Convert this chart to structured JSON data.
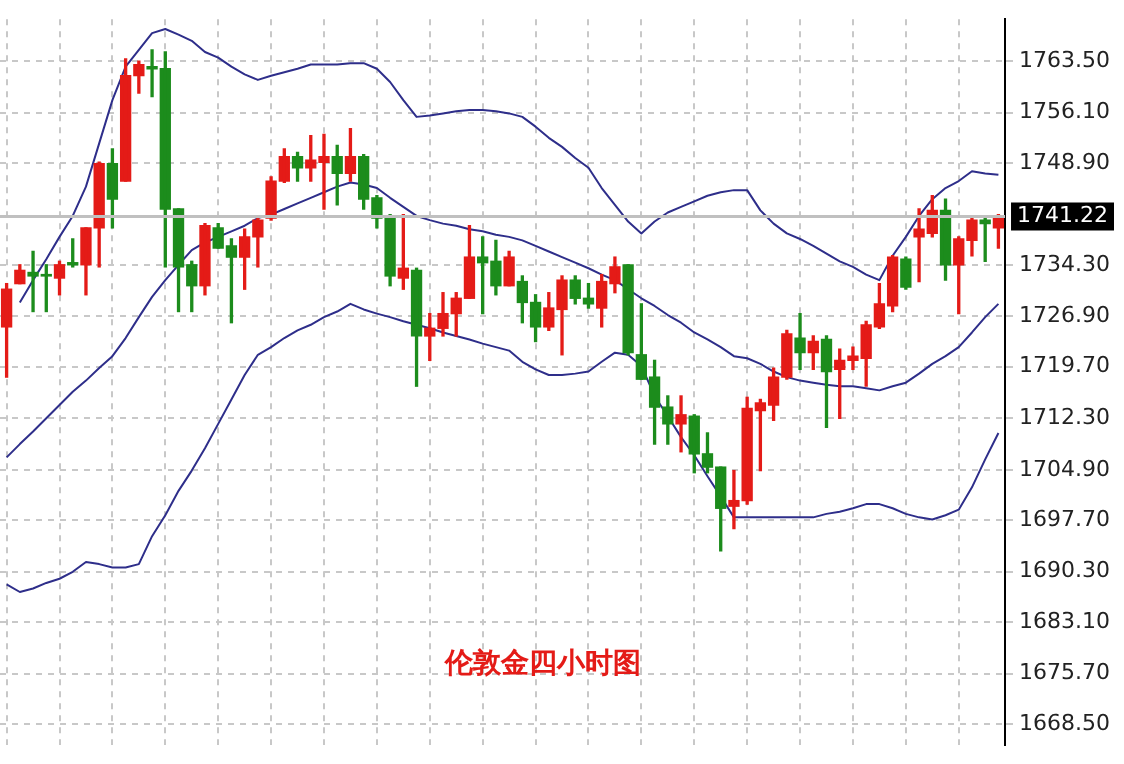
{
  "chart_data": {
    "type": "candlestick",
    "title": "伦敦金四小时图",
    "categories": [
      null,
      null,
      null,
      null,
      null,
      null,
      null,
      null,
      null,
      null,
      null,
      null,
      null,
      null,
      null,
      null,
      null,
      null,
      null,
      null,
      null,
      null,
      null,
      null,
      null,
      null,
      null,
      null,
      null,
      null,
      null,
      null,
      null,
      null,
      null,
      null,
      null,
      null,
      null,
      null,
      null,
      null,
      null,
      null,
      null,
      null,
      null,
      null,
      null,
      null,
      null,
      null,
      null,
      null,
      null,
      null,
      null,
      null,
      null,
      null,
      null,
      null,
      null,
      null,
      null,
      null,
      null,
      null,
      null,
      null,
      null,
      null,
      null,
      null,
      null,
      null
    ],
    "ohlc": [
      [
        1725.4,
        1731.6,
        1718.2,
        1730.8
      ],
      [
        1731.6,
        1734.3,
        1731.6,
        1733.5
      ],
      [
        1733.2,
        1736.2,
        1727.6,
        1732.7
      ],
      [
        1732.9,
        1734.3,
        1727.6,
        1732.7
      ],
      [
        1732.4,
        1734.8,
        1730.0,
        1734.3
      ],
      [
        1734.6,
        1738.0,
        1734.0,
        1734.3
      ],
      [
        1734.3,
        1739.6,
        1730.0,
        1739.6
      ],
      [
        1739.6,
        1749.0,
        1734.0,
        1748.8
      ],
      [
        1748.8,
        1750.9,
        1739.6,
        1743.7
      ],
      [
        1746.3,
        1763.8,
        1746.3,
        1761.4
      ],
      [
        1761.4,
        1763.5,
        1758.9,
        1763.0
      ],
      [
        1762.7,
        1765.1,
        1758.4,
        1762.4
      ],
      [
        1762.4,
        1764.8,
        1734.0,
        1742.3
      ],
      [
        1742.3,
        1742.3,
        1727.6,
        1734.0
      ],
      [
        1734.3,
        1734.8,
        1727.6,
        1731.3
      ],
      [
        1731.3,
        1740.2,
        1730.0,
        1739.9
      ],
      [
        1739.6,
        1740.2,
        1736.7,
        1736.7
      ],
      [
        1737.0,
        1738.0,
        1726.0,
        1735.4
      ],
      [
        1735.4,
        1739.4,
        1730.8,
        1738.3
      ],
      [
        1738.3,
        1741.0,
        1734.0,
        1740.7
      ],
      [
        1741.0,
        1746.9,
        1740.7,
        1746.3
      ],
      [
        1746.3,
        1750.9,
        1746.1,
        1749.8
      ],
      [
        1749.8,
        1750.4,
        1746.3,
        1748.2
      ],
      [
        1748.2,
        1752.8,
        1746.3,
        1749.3
      ],
      [
        1749.0,
        1753.0,
        1742.3,
        1749.8
      ],
      [
        1749.8,
        1751.4,
        1742.9,
        1747.4
      ],
      [
        1747.4,
        1753.8,
        1746.3,
        1749.8
      ],
      [
        1749.8,
        1750.1,
        1742.3,
        1743.7
      ],
      [
        1743.9,
        1744.2,
        1739.6,
        1741.0
      ],
      [
        1741.3,
        1741.5,
        1731.3,
        1732.7
      ],
      [
        1732.4,
        1741.5,
        1730.8,
        1733.8
      ],
      [
        1733.5,
        1733.8,
        1716.9,
        1724.1
      ],
      [
        1724.1,
        1727.3,
        1720.6,
        1725.2
      ],
      [
        1725.2,
        1730.3,
        1724.1,
        1727.3
      ],
      [
        1727.3,
        1730.3,
        1724.1,
        1729.5
      ],
      [
        1729.5,
        1739.9,
        1729.5,
        1735.4
      ],
      [
        1735.4,
        1738.3,
        1727.3,
        1734.6
      ],
      [
        1734.8,
        1737.8,
        1730.0,
        1731.3
      ],
      [
        1731.3,
        1736.2,
        1731.3,
        1735.4
      ],
      [
        1731.9,
        1732.7,
        1726.0,
        1728.9
      ],
      [
        1728.9,
        1730.0,
        1723.3,
        1725.4
      ],
      [
        1725.4,
        1730.3,
        1724.9,
        1728.1
      ],
      [
        1727.9,
        1732.7,
        1721.4,
        1732.1
      ],
      [
        1732.1,
        1732.7,
        1728.7,
        1729.5
      ],
      [
        1729.5,
        1731.6,
        1728.1,
        1728.7
      ],
      [
        1728.1,
        1732.9,
        1725.4,
        1731.9
      ],
      [
        1731.6,
        1735.4,
        1730.3,
        1734.0
      ],
      [
        1734.3,
        1734.3,
        1721.4,
        1721.7
      ],
      [
        1721.4,
        1728.7,
        1717.9,
        1717.9
      ],
      [
        1718.2,
        1720.6,
        1708.6,
        1713.9
      ],
      [
        1713.9,
        1715.5,
        1708.6,
        1711.5
      ],
      [
        1711.5,
        1715.5,
        1707.5,
        1712.8
      ],
      [
        1712.6,
        1712.8,
        1704.5,
        1707.2
      ],
      [
        1707.2,
        1710.2,
        1704.5,
        1705.3
      ],
      [
        1705.3,
        1705.3,
        1693.3,
        1699.4
      ],
      [
        1699.7,
        1704.8,
        1696.5,
        1700.5
      ],
      [
        1700.5,
        1715.3,
        1700.0,
        1713.7
      ],
      [
        1713.4,
        1715.0,
        1704.8,
        1714.5
      ],
      [
        1714.2,
        1719.5,
        1712.0,
        1718.2
      ],
      [
        1718.2,
        1724.9,
        1717.9,
        1724.4
      ],
      [
        1723.8,
        1727.3,
        1719.3,
        1721.7
      ],
      [
        1721.7,
        1724.1,
        1719.3,
        1723.3
      ],
      [
        1723.6,
        1724.1,
        1711.0,
        1719.0
      ],
      [
        1719.3,
        1722.2,
        1712.3,
        1720.6
      ],
      [
        1720.6,
        1722.5,
        1719.3,
        1721.2
      ],
      [
        1720.9,
        1726.2,
        1716.9,
        1725.7
      ],
      [
        1725.4,
        1731.6,
        1725.2,
        1728.7
      ],
      [
        1728.4,
        1735.6,
        1727.6,
        1735.4
      ],
      [
        1735.1,
        1735.4,
        1730.8,
        1731.1
      ],
      [
        1738.3,
        1742.3,
        1731.9,
        1739.4
      ],
      [
        1738.8,
        1744.2,
        1738.3,
        1742.1
      ],
      [
        1742.1,
        1743.7,
        1732.1,
        1734.3
      ],
      [
        1734.3,
        1738.3,
        1727.3,
        1738.0
      ],
      [
        1737.8,
        1741.0,
        1735.6,
        1740.7
      ],
      [
        1740.7,
        1741.0,
        1734.8,
        1740.2
      ],
      [
        1739.6,
        1741.5,
        1736.7,
        1741.22
      ]
    ],
    "colors": [
      "#e41b17",
      "#e41b17",
      "#1c8c1c",
      "#1c8c1c",
      "#e41b17",
      "#1c8c1c",
      "#e41b17",
      "#e41b17",
      "#1c8c1c",
      "#e41b17",
      "#e41b17",
      "#1c8c1c",
      "#1c8c1c",
      "#1c8c1c",
      "#1c8c1c",
      "#e41b17",
      "#1c8c1c",
      "#1c8c1c",
      "#e41b17",
      "#e41b17",
      "#e41b17",
      "#e41b17",
      "#1c8c1c",
      "#e41b17",
      "#e41b17",
      "#1c8c1c",
      "#e41b17",
      "#1c8c1c",
      "#1c8c1c",
      "#1c8c1c",
      "#e41b17",
      "#1c8c1c",
      "#e41b17",
      "#e41b17",
      "#e41b17",
      "#e41b17",
      "#1c8c1c",
      "#1c8c1c",
      "#e41b17",
      "#1c8c1c",
      "#1c8c1c",
      "#e41b17",
      "#e41b17",
      "#1c8c1c",
      "#1c8c1c",
      "#e41b17",
      "#e41b17",
      "#1c8c1c",
      "#1c8c1c",
      "#1c8c1c",
      "#1c8c1c",
      "#e41b17",
      "#1c8c1c",
      "#1c8c1c",
      "#1c8c1c",
      "#e41b17",
      "#e41b17",
      "#e41b17",
      "#e41b17",
      "#e41b17",
      "#1c8c1c",
      "#e41b17",
      "#1c8c1c",
      "#e41b17",
      "#e41b17",
      "#e41b17",
      "#e41b17",
      "#e41b17",
      "#1c8c1c",
      "#e41b17",
      "#e41b17",
      "#1c8c1c",
      "#e41b17",
      "#e41b17",
      "#1c8c1c",
      "#e41b17"
    ],
    "series": [
      {
        "type": "line",
        "color": "#2e2e8a",
        "values": [
          null,
          1728.9,
          1732.1,
          1735.1,
          1738.3,
          1741.3,
          1745.5,
          1751.7,
          1757.9,
          1762.7,
          1765.1,
          1767.5,
          1768.1,
          1767.3,
          1766.4,
          1764.8,
          1764.0,
          1762.7,
          1761.6,
          1760.8,
          1761.4,
          1761.9,
          1762.4,
          1763.0,
          1763.0,
          1763.0,
          1763.2,
          1763.2,
          1762.4,
          1760.5,
          1757.9,
          1755.5,
          1755.7,
          1756.0,
          1756.3,
          1756.5,
          1756.5,
          1756.3,
          1756.0,
          1755.5,
          1754.1,
          1752.5,
          1751.2,
          1749.6,
          1748.2,
          1745.3,
          1742.9,
          1740.5,
          1738.8,
          1740.5,
          1741.8,
          1742.6,
          1743.4,
          1744.2,
          1744.7,
          1745.0,
          1745.0,
          1742.1,
          1740.2,
          1738.8,
          1738.0,
          1737.0,
          1735.9,
          1734.8,
          1734.0,
          1732.9,
          1732.1,
          1735.6,
          1738.3,
          1741.3,
          1743.7,
          1745.3,
          1746.3,
          1747.7,
          1747.4,
          1747.2
        ]
      },
      {
        "type": "line",
        "color": "#2e2e8a",
        "values": [
          1706.7,
          1708.6,
          1710.4,
          1712.3,
          1714.2,
          1716.1,
          1717.7,
          1719.5,
          1721.2,
          1723.8,
          1726.8,
          1729.7,
          1732.1,
          1734.3,
          1736.4,
          1737.5,
          1738.3,
          1739.1,
          1739.9,
          1741.0,
          1741.5,
          1742.3,
          1743.1,
          1743.9,
          1744.7,
          1745.5,
          1746.1,
          1745.8,
          1745.3,
          1743.9,
          1742.6,
          1741.3,
          1740.7,
          1740.2,
          1739.9,
          1739.4,
          1739.1,
          1738.6,
          1738.3,
          1737.8,
          1737.0,
          1736.2,
          1735.4,
          1734.6,
          1733.8,
          1732.9,
          1732.1,
          1730.8,
          1729.5,
          1728.4,
          1727.1,
          1726.0,
          1724.6,
          1723.6,
          1722.5,
          1721.2,
          1720.9,
          1720.1,
          1719.0,
          1718.2,
          1717.7,
          1717.4,
          1717.1,
          1716.9,
          1716.9,
          1716.6,
          1716.3,
          1716.9,
          1717.4,
          1718.7,
          1720.1,
          1721.2,
          1722.5,
          1724.6,
          1726.8,
          1728.7
        ]
      },
      {
        "type": "line",
        "color": "#2e2e8a",
        "values": [
          1688.5,
          1687.4,
          1687.9,
          1688.7,
          1689.3,
          1690.3,
          1691.7,
          1691.4,
          1690.9,
          1690.9,
          1691.4,
          1695.4,
          1698.4,
          1701.9,
          1704.8,
          1708.0,
          1711.5,
          1715.0,
          1718.5,
          1721.4,
          1722.5,
          1723.8,
          1724.9,
          1725.7,
          1726.8,
          1727.6,
          1728.7,
          1727.9,
          1727.3,
          1726.8,
          1726.2,
          1725.7,
          1725.2,
          1724.6,
          1724.1,
          1723.6,
          1723.0,
          1722.5,
          1722.0,
          1720.4,
          1719.3,
          1718.5,
          1718.5,
          1718.7,
          1719.0,
          1720.4,
          1721.7,
          1721.4,
          1719.8,
          1715.5,
          1712.6,
          1709.6,
          1707.0,
          1704.0,
          1701.1,
          1698.1,
          1698.1,
          1698.1,
          1698.1,
          1698.1,
          1698.1,
          1698.1,
          1698.6,
          1698.9,
          1699.4,
          1700.0,
          1700.0,
          1699.4,
          1698.6,
          1698.1,
          1697.8,
          1698.4,
          1699.2,
          1702.4,
          1706.4,
          1710.2
        ]
      }
    ],
    "ylim": [
      1665.5,
      1769.5
    ],
    "yticks": [
      {
        "value": 1763.5,
        "label": "1763.50"
      },
      {
        "value": 1756.1,
        "label": "1756.10"
      },
      {
        "value": 1748.9,
        "label": "1748.90"
      },
      {
        "value": 1734.3,
        "label": "1734.30"
      },
      {
        "value": 1726.9,
        "label": "1726.90"
      },
      {
        "value": 1719.7,
        "label": "1719.70"
      },
      {
        "value": 1712.3,
        "label": "1712.30"
      },
      {
        "value": 1704.9,
        "label": "1704.90"
      },
      {
        "value": 1697.7,
        "label": "1697.70"
      },
      {
        "value": 1690.3,
        "label": "1690.30"
      },
      {
        "value": 1683.1,
        "label": "1683.10"
      },
      {
        "value": 1675.7,
        "label": "1675.70"
      },
      {
        "value": 1668.5,
        "label": "1668.50"
      }
    ],
    "ref_lines": [
      {
        "axis": "y",
        "value": 1741.22,
        "label": "1741.22",
        "color": "#c0c0c0"
      }
    ],
    "grid": true,
    "tick_labels": "y"
  }
}
